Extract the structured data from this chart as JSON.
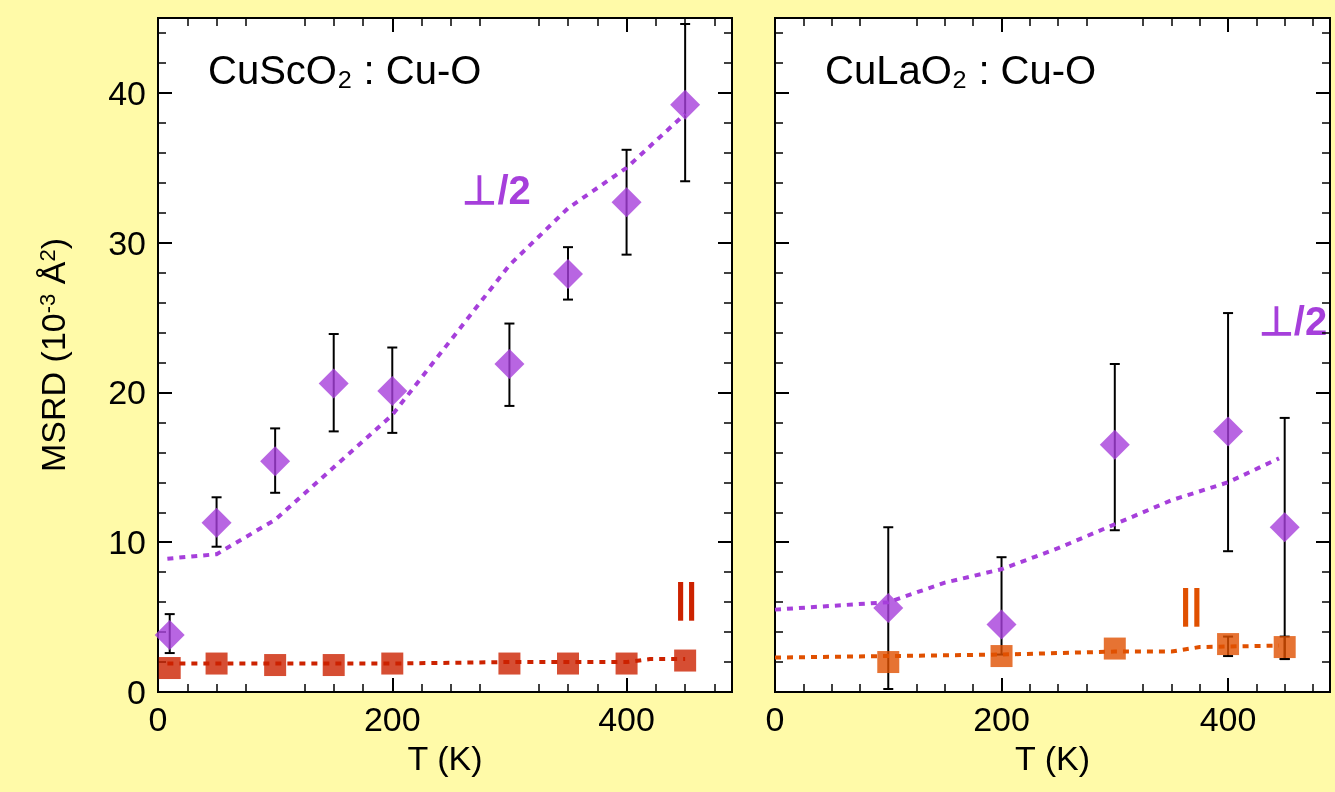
{
  "chart_data": [
    {
      "type": "scatter",
      "annotations": [
        "CuScO₂ : Cu-O"
      ],
      "xlabel": "T (K)",
      "ylabel": "MSRD (10$^{-3}$ Å$^{2}$)",
      "xlim": [
        0,
        490
      ],
      "xticks": [
        0,
        200,
        400
      ],
      "ylim": [
        0,
        45
      ],
      "yticks": [
        0,
        10,
        20,
        30,
        40
      ],
      "grid": false,
      "legend": false,
      "series": [
        {
          "name": "⊥/2",
          "type": "scatter",
          "marker": "diamond",
          "color": "#a63fdb",
          "x": [
            10,
            50,
            100,
            150,
            200,
            300,
            350,
            400,
            450
          ],
          "values": [
            3.8,
            11.3,
            15.4,
            20.6,
            20.1,
            21.9,
            27.9,
            32.7,
            39.2
          ],
          "errors": [
            [
              2.6,
              5.2
            ],
            [
              9.7,
              13.0
            ],
            [
              13.3,
              17.6
            ],
            [
              17.4,
              23.9
            ],
            [
              17.3,
              23.0
            ],
            [
              19.1,
              24.6
            ],
            [
              26.2,
              29.7
            ],
            [
              29.2,
              36.2
            ],
            [
              34.1,
              44.6
            ]
          ]
        },
        {
          "type": "line",
          "marker": "none",
          "line_style": "dashed",
          "color": "#a63fdb",
          "x": [
            8,
            50,
            100,
            150,
            200,
            250,
            300,
            350,
            400,
            450
          ],
          "values": [
            8.9,
            9.2,
            11.5,
            15.0,
            18.5,
            23.5,
            28.5,
            32.3,
            35.0,
            38.6
          ]
        },
        {
          "name": "||",
          "type": "scatter",
          "marker": "square",
          "color": "#cc2200",
          "x": [
            10,
            50,
            100,
            150,
            200,
            300,
            350,
            400,
            450
          ],
          "values": [
            1.6,
            1.9,
            1.8,
            1.8,
            1.9,
            1.9,
            1.9,
            1.9,
            2.1
          ]
        },
        {
          "type": "line",
          "marker": "none",
          "line_style": "dashed",
          "color": "#cc2200",
          "x": [
            8,
            100,
            200,
            300,
            400,
            420,
            450
          ],
          "values": [
            1.9,
            1.9,
            1.9,
            2.0,
            2.0,
            2.2,
            2.2
          ]
        }
      ]
    },
    {
      "type": "scatter",
      "annotations": [
        "CuLaO₂ : Cu-O"
      ],
      "xlabel": "T (K)",
      "xlim": [
        0,
        490
      ],
      "xticks": [
        0,
        200,
        400
      ],
      "ylim": [
        0,
        45
      ],
      "yticks": [
        0,
        10,
        20,
        30,
        40
      ],
      "tick_labels": "x",
      "grid": false,
      "legend": false,
      "series": [
        {
          "name": "⊥/2",
          "type": "scatter",
          "marker": "diamond",
          "color": "#a63fdb",
          "x": [
            100,
            200,
            300,
            400,
            450
          ],
          "values": [
            5.6,
            4.5,
            16.5,
            17.4,
            11.0
          ],
          "errors": [
            [
              0.2,
              11.0
            ],
            [
              2.5,
              9.0
            ],
            [
              10.8,
              21.9
            ],
            [
              9.4,
              25.3
            ],
            [
              2.2,
              18.3
            ]
          ]
        },
        {
          "type": "line",
          "marker": "none",
          "line_style": "dashed",
          "color": "#a63fdb",
          "x": [
            0,
            100,
            150,
            200,
            250,
            300,
            350,
            400,
            445
          ],
          "values": [
            5.5,
            6.0,
            7.3,
            8.2,
            9.6,
            11.2,
            12.8,
            14.0,
            15.6
          ]
        },
        {
          "name": "||",
          "type": "scatter",
          "marker": "square",
          "color": "#e05000",
          "x": [
            100,
            200,
            300,
            400,
            450
          ],
          "values": [
            2.0,
            2.4,
            2.9,
            3.2,
            3.0
          ],
          "errors": [
            null,
            null,
            null,
            [
              2.4,
              3.7
            ],
            [
              2.2,
              3.7
            ]
          ]
        },
        {
          "type": "line",
          "marker": "none",
          "line_style": "dashed",
          "color": "#e05000",
          "x": [
            0,
            200,
            300,
            350,
            375,
            445
          ],
          "values": [
            2.3,
            2.5,
            2.7,
            2.7,
            3.0,
            3.1
          ]
        }
      ]
    }
  ]
}
